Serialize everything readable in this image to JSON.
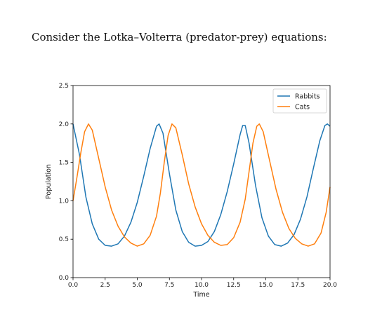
{
  "caption": "Consider the Lotka–Volterra (predator-prey) equations:",
  "chart_data": {
    "type": "line",
    "title": "",
    "xlabel": "Time",
    "ylabel": "Population",
    "xlim": [
      0,
      20
    ],
    "ylim": [
      0,
      2.5
    ],
    "xticks": [
      "0.0",
      "2.5",
      "5.0",
      "7.5",
      "10.0",
      "12.5",
      "15.0",
      "17.5",
      "20.0"
    ],
    "yticks": [
      "0.0",
      "0.5",
      "1.0",
      "1.5",
      "2.0",
      "2.5"
    ],
    "grid": false,
    "legend_position": "top-right",
    "series": [
      {
        "name": "Rabbits",
        "color": "#1f77b4",
        "points": [
          [
            0.0,
            2.0
          ],
          [
            0.5,
            1.6
          ],
          [
            1.0,
            1.05
          ],
          [
            1.5,
            0.7
          ],
          [
            2.0,
            0.5
          ],
          [
            2.5,
            0.42
          ],
          [
            3.0,
            0.41
          ],
          [
            3.5,
            0.44
          ],
          [
            4.0,
            0.54
          ],
          [
            4.5,
            0.72
          ],
          [
            5.0,
            0.98
          ],
          [
            5.5,
            1.32
          ],
          [
            6.0,
            1.68
          ],
          [
            6.5,
            1.97
          ],
          [
            6.7,
            2.0
          ],
          [
            7.0,
            1.88
          ],
          [
            7.5,
            1.35
          ],
          [
            8.0,
            0.88
          ],
          [
            8.5,
            0.6
          ],
          [
            9.0,
            0.46
          ],
          [
            9.5,
            0.41
          ],
          [
            10.0,
            0.42
          ],
          [
            10.5,
            0.47
          ],
          [
            11.0,
            0.6
          ],
          [
            11.5,
            0.82
          ],
          [
            12.0,
            1.12
          ],
          [
            12.5,
            1.48
          ],
          [
            13.0,
            1.86
          ],
          [
            13.2,
            1.98
          ],
          [
            13.4,
            1.98
          ],
          [
            13.7,
            1.75
          ],
          [
            14.2,
            1.2
          ],
          [
            14.7,
            0.78
          ],
          [
            15.2,
            0.54
          ],
          [
            15.7,
            0.43
          ],
          [
            16.2,
            0.41
          ],
          [
            16.7,
            0.45
          ],
          [
            17.2,
            0.56
          ],
          [
            17.7,
            0.76
          ],
          [
            18.2,
            1.05
          ],
          [
            18.7,
            1.42
          ],
          [
            19.2,
            1.78
          ],
          [
            19.6,
            1.98
          ],
          [
            19.8,
            2.0
          ],
          [
            20.0,
            1.97
          ]
        ]
      },
      {
        "name": "Cats",
        "color": "#ff7f0e",
        "points": [
          [
            0.0,
            1.0
          ],
          [
            0.3,
            1.3
          ],
          [
            0.6,
            1.62
          ],
          [
            0.9,
            1.9
          ],
          [
            1.2,
            2.0
          ],
          [
            1.5,
            1.92
          ],
          [
            2.0,
            1.55
          ],
          [
            2.5,
            1.18
          ],
          [
            3.0,
            0.88
          ],
          [
            3.5,
            0.67
          ],
          [
            4.0,
            0.53
          ],
          [
            4.5,
            0.45
          ],
          [
            5.0,
            0.41
          ],
          [
            5.5,
            0.44
          ],
          [
            6.0,
            0.55
          ],
          [
            6.5,
            0.8
          ],
          [
            6.8,
            1.1
          ],
          [
            7.1,
            1.5
          ],
          [
            7.4,
            1.85
          ],
          [
            7.7,
            2.0
          ],
          [
            8.0,
            1.95
          ],
          [
            8.5,
            1.6
          ],
          [
            9.0,
            1.22
          ],
          [
            9.5,
            0.92
          ],
          [
            10.0,
            0.7
          ],
          [
            10.5,
            0.55
          ],
          [
            11.0,
            0.46
          ],
          [
            11.5,
            0.42
          ],
          [
            12.0,
            0.43
          ],
          [
            12.5,
            0.52
          ],
          [
            13.0,
            0.72
          ],
          [
            13.4,
            1.02
          ],
          [
            13.7,
            1.38
          ],
          [
            14.0,
            1.75
          ],
          [
            14.3,
            1.97
          ],
          [
            14.5,
            2.0
          ],
          [
            14.8,
            1.9
          ],
          [
            15.3,
            1.52
          ],
          [
            15.8,
            1.15
          ],
          [
            16.3,
            0.85
          ],
          [
            16.8,
            0.64
          ],
          [
            17.3,
            0.51
          ],
          [
            17.8,
            0.44
          ],
          [
            18.3,
            0.41
          ],
          [
            18.8,
            0.44
          ],
          [
            19.3,
            0.58
          ],
          [
            19.7,
            0.85
          ],
          [
            20.0,
            1.18
          ]
        ]
      }
    ]
  }
}
